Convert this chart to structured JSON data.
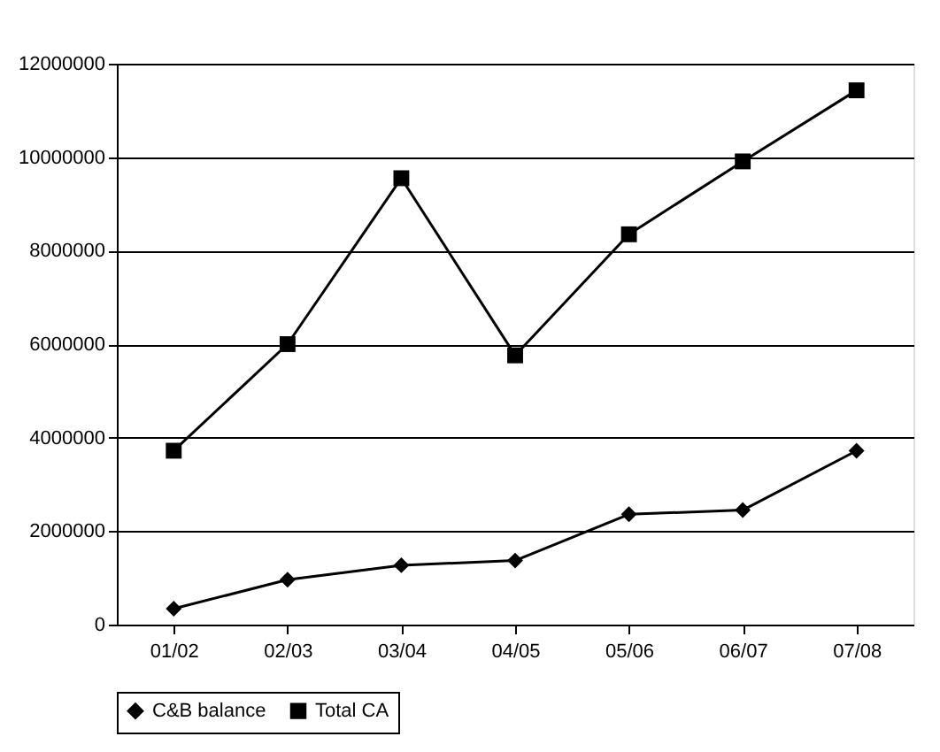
{
  "chart_data": {
    "type": "line",
    "categories": [
      "01/02",
      "02/03",
      "03/04",
      "04/05",
      "05/06",
      "06/07",
      "07/08"
    ],
    "series": [
      {
        "name": "C&B balance",
        "color": "#000000",
        "marker": "diamond",
        "values": [
          340000,
          960000,
          1270000,
          1370000,
          2360000,
          2450000,
          3720000
        ]
      },
      {
        "name": "Total CA",
        "color": "#000000",
        "marker": "square",
        "values": [
          3720000,
          6000000,
          9550000,
          5760000,
          8350000,
          9910000,
          11430000
        ]
      }
    ],
    "ylim": [
      0,
      12000000
    ],
    "yticks": [
      0,
      2000000,
      4000000,
      6000000,
      8000000,
      10000000,
      12000000
    ],
    "grid": "y",
    "legend": "bottom",
    "line_style": "solid"
  }
}
